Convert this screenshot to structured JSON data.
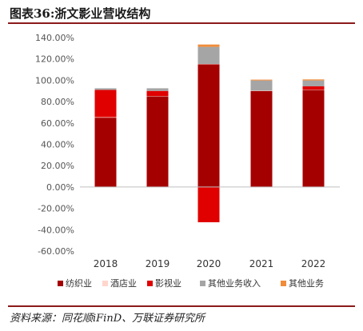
{
  "header": {
    "title": "图表36:浙文影业营收结构"
  },
  "footer": {
    "source": "资料来源：同花顺iFinD、万联证券研究所"
  },
  "chart_data": {
    "type": "bar",
    "stacked": true,
    "categories": [
      "2018",
      "2019",
      "2020",
      "2021",
      "2022"
    ],
    "yticks": [
      "140.00%",
      "120.00%",
      "100.00%",
      "80.00%",
      "60.00%",
      "40.00%",
      "20.00%",
      "0.00%",
      "-20.00%",
      "-40.00%",
      "-60.00%"
    ],
    "ylim": [
      -60,
      140
    ],
    "grid": false,
    "legend_position": "bottom",
    "series": [
      {
        "name": "纺织业",
        "color": "#a50000",
        "values": [
          65,
          85,
          115,
          90,
          91
        ]
      },
      {
        "name": "酒店业",
        "color": "#ffd6cc",
        "values": [
          0.5,
          0.3,
          0.3,
          0.3,
          0.3
        ]
      },
      {
        "name": "影视业",
        "color": "#e00000",
        "values": [
          25.5,
          4.7,
          -33,
          0,
          3
        ]
      },
      {
        "name": "其他业务收入",
        "color": "#a5a5a5",
        "values": [
          1.5,
          2.5,
          16,
          9.5,
          5.5
        ]
      },
      {
        "name": "其他业务",
        "color": "#f08c3a",
        "values": [
          0,
          0,
          2.2,
          0.8,
          1
        ]
      }
    ]
  }
}
